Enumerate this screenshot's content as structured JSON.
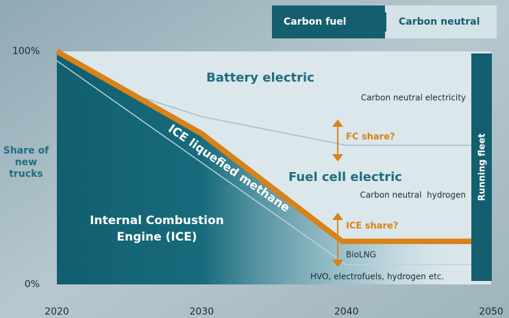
{
  "chart_data": {
    "type": "line",
    "tabs": [
      "Carbon fuel",
      "Carbon neutral"
    ],
    "ylabel": "Share of new trucks",
    "xlim": [
      2020,
      2050
    ],
    "xticks": [
      2020,
      2030,
      2040,
      2050
    ],
    "ylim": [
      0,
      100
    ],
    "yticks": [
      {
        "value": 0,
        "label": "0%"
      },
      {
        "value": 100,
        "label": "100%"
      }
    ],
    "series": [
      {
        "color": "#d88218",
        "x": [
          2020,
          2030,
          2039.7,
          2048.7
        ],
        "values": [
          100,
          64.7,
          18.5,
          18.5
        ]
      },
      {
        "color": "#b9d3dc",
        "x": [
          2020,
          2040,
          2048.7
        ],
        "values": [
          96,
          8.5,
          8.5
        ]
      },
      {
        "color": "#9dbfcb",
        "x": [
          2026,
          2030,
          2040,
          2048.7
        ],
        "values": [
          80,
          72,
          59.7,
          59.7
        ]
      }
    ],
    "regions": [
      "Battery electric",
      "Fuel cell electric",
      "ICE liquefied methane",
      "Internal Combustion",
      "Engine (ICE)"
    ],
    "notes": [
      "Carbon neutral electricity",
      "Carbon neutral  hydrogen",
      "BioLNG",
      "HVO, electrofuels, hydrogen etc."
    ],
    "annotations": [
      "FC share?",
      "ICE share?"
    ],
    "running_fleet": "Running fleet"
  }
}
